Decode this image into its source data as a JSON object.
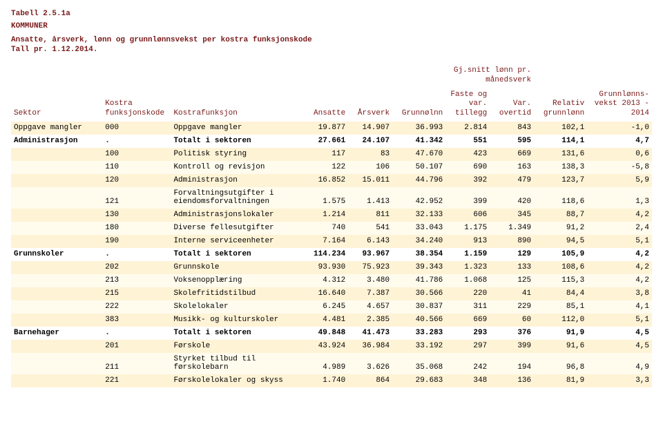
{
  "header": {
    "table_id": "Tabell 2.5.1a",
    "kom": "KOMMUNER",
    "desc1": "Ansatte, årsverk, lønn og grunnlønnsvekst per kostra funksjonskode",
    "desc2": "Tall pr. 1.12.2014."
  },
  "columns": {
    "sektor": "Sektor",
    "kode": "Kostra\nfunksjonskode",
    "funk": "Kostrafunksjon",
    "ansatte": "Ansatte",
    "arsverk": "Årsverk",
    "grunnolnn": "Grunnølnn",
    "super_gj": "Gj.snitt lønn pr.\nmånedsverk",
    "faste": "Faste\nog var.\ntillegg",
    "overtid": "Var.\novertid",
    "relativ": "Relativ\ngrunnlønn",
    "vekst": "Grunnlønns-\nvekst\n2013 - 2014"
  },
  "rows": [
    {
      "style": "cream",
      "sector": false,
      "sektor": "Oppgave mangler",
      "kode": "000",
      "funk": "Oppgave mangler",
      "ansatte": "19.877",
      "arsverk": "14.907",
      "grunn": "36.993",
      "faste": "2.814",
      "over": "843",
      "rel": "102,1",
      "vekst": "-1,0"
    },
    {
      "style": "white",
      "sector": true,
      "sektor": "Administrasjon",
      "kode": ".",
      "funk": "Totalt i sektoren",
      "ansatte": "27.661",
      "arsverk": "24.107",
      "grunn": "41.342",
      "faste": "551",
      "over": "595",
      "rel": "114,1",
      "vekst": "4,7"
    },
    {
      "style": "cream",
      "sector": false,
      "sektor": "",
      "kode": "100",
      "funk": "Politisk styring",
      "ansatte": "117",
      "arsverk": "83",
      "grunn": "47.670",
      "faste": "423",
      "over": "669",
      "rel": "131,6",
      "vekst": "0,6"
    },
    {
      "style": "pale",
      "sector": false,
      "sektor": "",
      "kode": "110",
      "funk": "Kontroll og revisjon",
      "ansatte": "122",
      "arsverk": "106",
      "grunn": "50.107",
      "faste": "690",
      "over": "163",
      "rel": "138,3",
      "vekst": "-5,8"
    },
    {
      "style": "cream",
      "sector": false,
      "sektor": "",
      "kode": "120",
      "funk": "Administrasjon",
      "ansatte": "16.852",
      "arsverk": "15.011",
      "grunn": "44.796",
      "faste": "392",
      "over": "479",
      "rel": "123,7",
      "vekst": "5,9"
    },
    {
      "style": "pale",
      "sector": false,
      "sektor": "",
      "kode": "121",
      "funk": "Forvaltningsutgifter i eiendomsforvaltningen",
      "ansatte": "1.575",
      "arsverk": "1.413",
      "grunn": "42.952",
      "faste": "399",
      "over": "420",
      "rel": "118,6",
      "vekst": "1,3"
    },
    {
      "style": "cream",
      "sector": false,
      "sektor": "",
      "kode": "130",
      "funk": "Administrasjonslokaler",
      "ansatte": "1.214",
      "arsverk": "811",
      "grunn": "32.133",
      "faste": "606",
      "over": "345",
      "rel": "88,7",
      "vekst": "4,2"
    },
    {
      "style": "pale",
      "sector": false,
      "sektor": "",
      "kode": "180",
      "funk": "Diverse fellesutgifter",
      "ansatte": "740",
      "arsverk": "541",
      "grunn": "33.043",
      "faste": "1.175",
      "over": "1.349",
      "rel": "91,2",
      "vekst": "2,4"
    },
    {
      "style": "cream",
      "sector": false,
      "sektor": "",
      "kode": "190",
      "funk": "Interne serviceenheter",
      "ansatte": "7.164",
      "arsverk": "6.143",
      "grunn": "34.240",
      "faste": "913",
      "over": "890",
      "rel": "94,5",
      "vekst": "5,1"
    },
    {
      "style": "white",
      "sector": true,
      "sektor": "Grunnskoler",
      "kode": ".",
      "funk": "Totalt i sektoren",
      "ansatte": "114.234",
      "arsverk": "93.967",
      "grunn": "38.354",
      "faste": "1.159",
      "over": "129",
      "rel": "105,9",
      "vekst": "4,2"
    },
    {
      "style": "cream",
      "sector": false,
      "sektor": "",
      "kode": "202",
      "funk": "Grunnskole",
      "ansatte": "93.930",
      "arsverk": "75.923",
      "grunn": "39.343",
      "faste": "1.323",
      "over": "133",
      "rel": "108,6",
      "vekst": "4,2"
    },
    {
      "style": "pale",
      "sector": false,
      "sektor": "",
      "kode": "213",
      "funk": "Voksenopplæring",
      "ansatte": "4.312",
      "arsverk": "3.480",
      "grunn": "41.786",
      "faste": "1.068",
      "over": "125",
      "rel": "115,3",
      "vekst": "4,2"
    },
    {
      "style": "cream",
      "sector": false,
      "sektor": "",
      "kode": "215",
      "funk": "Skolefritidstilbud",
      "ansatte": "16.640",
      "arsverk": "7.387",
      "grunn": "30.566",
      "faste": "220",
      "over": "41",
      "rel": "84,4",
      "vekst": "3,8"
    },
    {
      "style": "pale",
      "sector": false,
      "sektor": "",
      "kode": "222",
      "funk": "Skolelokaler",
      "ansatte": "6.245",
      "arsverk": "4.657",
      "grunn": "30.837",
      "faste": "311",
      "over": "229",
      "rel": "85,1",
      "vekst": "4,1"
    },
    {
      "style": "cream",
      "sector": false,
      "sektor": "",
      "kode": "383",
      "funk": "Musikk- og kulturskoler",
      "ansatte": "4.481",
      "arsverk": "2.385",
      "grunn": "40.566",
      "faste": "669",
      "over": "60",
      "rel": "112,0",
      "vekst": "5,1"
    },
    {
      "style": "white",
      "sector": true,
      "sektor": "Barnehager",
      "kode": ".",
      "funk": "Totalt i sektoren",
      "ansatte": "49.848",
      "arsverk": "41.473",
      "grunn": "33.283",
      "faste": "293",
      "over": "376",
      "rel": "91,9",
      "vekst": "4,5"
    },
    {
      "style": "cream",
      "sector": false,
      "sektor": "",
      "kode": "201",
      "funk": "Førskole",
      "ansatte": "43.924",
      "arsverk": "36.984",
      "grunn": "33.192",
      "faste": "297",
      "over": "399",
      "rel": "91,6",
      "vekst": "4,5"
    },
    {
      "style": "pale",
      "sector": false,
      "sektor": "",
      "kode": "211",
      "funk": "Styrket tilbud til førskolebarn",
      "ansatte": "4.989",
      "arsverk": "3.626",
      "grunn": "35.068",
      "faste": "242",
      "over": "194",
      "rel": "96,8",
      "vekst": "4,9"
    },
    {
      "style": "cream",
      "sector": false,
      "sektor": "",
      "kode": "221",
      "funk": "Førskolelokaler og skyss",
      "ansatte": "1.740",
      "arsverk": "864",
      "grunn": "29.683",
      "faste": "348",
      "over": "136",
      "rel": "81,9",
      "vekst": "3,3"
    }
  ]
}
